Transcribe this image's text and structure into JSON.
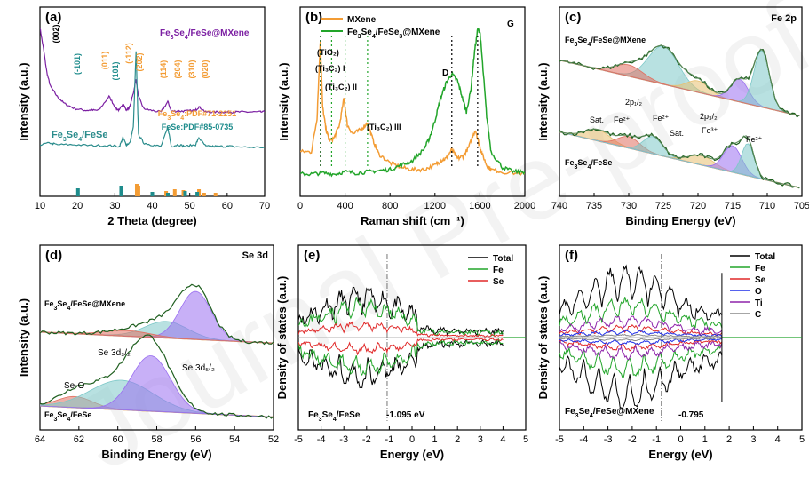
{
  "colors": {
    "panel_a_top": "#7b1fa2",
    "panel_a_bottom": "#2a8c8c",
    "orange": "#f39c34",
    "teal": "#1e8c8c",
    "green": "#22a52a",
    "red": "#e02828",
    "dark_green": "#1f5f1f",
    "peak_teal": "#7dc8c8",
    "peak_purple": "#9a6ff0",
    "peak_red": "#e07060",
    "peak_yellow": "#e8c070",
    "baseline": "#d9893a",
    "blue": "#1f2fe8",
    "purple": "#8e24aa",
    "gray": "#888888",
    "black": "#000000"
  },
  "chart_data": [
    {
      "panel": "(a)",
      "type": "line",
      "xlabel": "2 Theta (degree)",
      "ylabel": "Intensity (a.u.)",
      "xlim": [
        5,
        70
      ],
      "xticks": [
        "10",
        "20",
        "30",
        "40",
        "50",
        "60",
        "70"
      ],
      "series": [
        {
          "name": "Fe3Se4/FeSe@MXene",
          "label_html": "Fe<tspan baseline-shift='sub' font-size='7'>3</tspan>Se<tspan baseline-shift='sub' font-size='7'>4</tspan>/FeSe@MXene",
          "x": [
            5,
            6,
            7,
            8,
            10,
            12,
            15,
            18,
            20,
            22,
            25,
            27,
            28,
            29,
            30,
            31,
            32,
            32.8,
            33.5,
            35,
            37,
            40,
            42,
            43,
            45,
            47,
            50,
            51,
            53,
            55,
            58,
            60,
            62,
            65,
            68,
            70
          ],
          "y": [
            9.8,
            8.6,
            7.2,
            6.4,
            5.8,
            5.4,
            5.1,
            5.0,
            5.0,
            5.0,
            5.8,
            5.1,
            5.0,
            5.4,
            5.0,
            5.2,
            6.0,
            6.8,
            5.8,
            5.1,
            5.0,
            4.9,
            5.5,
            4.95,
            4.95,
            4.95,
            5.0,
            5.2,
            4.9,
            4.9,
            4.9,
            4.9,
            4.9,
            4.9,
            4.9,
            4.9
          ]
        },
        {
          "name": "Fe3Se4/FeSe",
          "label_html": "Fe<tspan baseline-shift='sub' font-size='7'>3</tspan>Se<tspan baseline-shift='sub' font-size='7'>4</tspan>/FeSe",
          "x": [
            5,
            8,
            10,
            15,
            20,
            25,
            28,
            29,
            30,
            31,
            32,
            32.8,
            33.5,
            35,
            37,
            40,
            42,
            43,
            45,
            47,
            50,
            51,
            53,
            55,
            58,
            60,
            65,
            70
          ],
          "y": [
            3.0,
            3.1,
            3.0,
            3.0,
            2.95,
            2.95,
            2.9,
            3.4,
            3.0,
            3.1,
            4.0,
            8.4,
            3.6,
            3.1,
            3.0,
            2.9,
            4.0,
            2.9,
            3.0,
            2.9,
            3.0,
            3.4,
            2.9,
            2.9,
            2.9,
            2.9,
            2.85,
            2.85
          ]
        }
      ],
      "annotations": [
        "(002)",
        "(-101)",
        "(011)",
        "(101)",
        "(-112)",
        "(202)",
        "(114)",
        "(204)",
        "(310)",
        "(020)"
      ],
      "references": [
        {
          "name": "Fe3Se4:PDF#71-2251",
          "label_html": "Fe<tspan baseline-shift='sub' font-size='7'>3</tspan>Se<tspan baseline-shift='sub' font-size='7'>4</tspan>:PDF#71-2251",
          "positions": [
            33.0,
            33.5,
            41.5,
            44.0,
            46.5,
            51.0,
            52.5,
            55.8
          ]
        },
        {
          "name": "FeSe:PDF#85-0735",
          "label_html": "FeSe:PDF#85-0735",
          "positions": [
            16.0,
            28.5,
            37.5,
            42.0,
            47.0,
            50.5
          ]
        }
      ]
    },
    {
      "panel": "(b)",
      "type": "line",
      "xlabel": "Raman shift (cm⁻¹)",
      "ylabel": "Intensity (a.u.)",
      "xlim": [
        0,
        2000
      ],
      "xticks": [
        "0",
        "400",
        "800",
        "1200",
        "1600",
        "2000"
      ],
      "series": [
        {
          "name": "MXene",
          "label_html": "MXene",
          "x": [
            0,
            100,
            150,
            180,
            200,
            230,
            260,
            300,
            350,
            390,
            420,
            470,
            540,
            600,
            650,
            700,
            800,
            900,
            1000,
            1100,
            1200,
            1250,
            1300,
            1350,
            1400,
            1450,
            1500,
            1560,
            1590,
            1620,
            1660,
            1700,
            1800,
            2000
          ],
          "y": [
            4.0,
            4.0,
            5.5,
            9.0,
            6.0,
            5.0,
            4.5,
            4.6,
            5.2,
            6.4,
            5.2,
            4.8,
            5.0,
            5.3,
            4.5,
            3.9,
            3.5,
            3.3,
            3.2,
            3.2,
            3.4,
            3.6,
            3.7,
            4.1,
            3.7,
            3.8,
            4.2,
            5.0,
            4.4,
            3.9,
            3.4,
            3.2,
            3.1,
            3.0
          ]
        },
        {
          "name": "Fe3Se4/FeSe3@MXene",
          "label_html": "Fe<tspan baseline-shift='sub' font-size='7'>3</tspan>Se<tspan baseline-shift='sub' font-size='7'>4</tspan>/FeSe<tspan baseline-shift='sub' font-size='7'>3</tspan>@MXene",
          "x": [
            0,
            100,
            200,
            300,
            400,
            500,
            600,
            700,
            800,
            900,
            1000,
            1100,
            1150,
            1200,
            1250,
            1300,
            1350,
            1400,
            1440,
            1480,
            1520,
            1550,
            1580,
            1600,
            1620,
            1660,
            1700,
            1800,
            1900,
            2000
          ],
          "y": [
            3.0,
            3.0,
            3.05,
            3.0,
            3.1,
            3.05,
            3.1,
            3.15,
            3.2,
            3.4,
            3.6,
            4.1,
            4.6,
            5.4,
            6.4,
            7.1,
            7.5,
            7.2,
            6.5,
            5.8,
            6.8,
            8.4,
            9.5,
            9.4,
            8.2,
            5.6,
            4.0,
            3.3,
            3.1,
            3.1
          ]
        }
      ],
      "annotations": [
        "(TiO₂)",
        "(Ti₃C₂) I",
        "(Ti₃C₂) II",
        "(Ti₃C₂) III",
        "D",
        "G"
      ]
    },
    {
      "panel": "(c)",
      "type": "line",
      "title": "Fe 2p",
      "xlabel": "Binding Energy (eV)",
      "ylabel": "Intensity (a.u.)",
      "xlim": [
        740,
        705
      ],
      "xticks": [
        "740",
        "735",
        "730",
        "725",
        "720",
        "715",
        "710",
        "705"
      ],
      "series": [
        {
          "name": "Fe3Se4/FeSe@MXene",
          "label_html": "Fe<tspan baseline-shift='sub' font-size='7'>3</tspan>Se<tspan baseline-shift='sub' font-size='7'>4</tspan>/FeSe@MXene"
        },
        {
          "name": "Fe3Se4/FeSe",
          "label_html": "Fe<tspan baseline-shift='sub' font-size='7'>3</tspan>Se<tspan baseline-shift='sub' font-size='7'>4</tspan>/FeSe"
        }
      ],
      "annotations": [
        "2p₁/₂",
        "2p₃/₂",
        "Sat.",
        "Fe²⁺",
        "Fe²⁺",
        "Sat.",
        "Fe³⁺",
        "Fe²⁺"
      ]
    },
    {
      "panel": "(d)",
      "type": "line",
      "title": "Se 3d",
      "xlabel": "Binding Energy (eV)",
      "ylabel": "Intensity (a.u.)",
      "xlim": [
        64,
        52
      ],
      "xticks": [
        "64",
        "62",
        "60",
        "58",
        "56",
        "54",
        "52"
      ],
      "series": [
        {
          "name": "Fe3Se4/FeSe@MXene",
          "label_html": "Fe<tspan baseline-shift='sub' font-size='7'>3</tspan>Se<tspan baseline-shift='sub' font-size='7'>4</tspan>/FeSe@MXene"
        },
        {
          "name": "Fe3Se4/FeSe",
          "label_html": "Fe<tspan baseline-shift='sub' font-size='7'>3</tspan>Se<tspan baseline-shift='sub' font-size='7'>4</tspan>/FeSe"
        }
      ],
      "annotations": [
        "Se 3d₃/₂",
        "Se 3d₅/₂",
        "Se-O"
      ]
    },
    {
      "panel": "(e)",
      "type": "line",
      "xlabel": "Energy (eV)",
      "ylabel": "Density of states (a.u.)",
      "xlim": [
        -5,
        5
      ],
      "xticks": [
        "-5",
        "-4",
        "-3",
        "-2",
        "-1",
        "0",
        "1",
        "2",
        "3",
        "4",
        "5"
      ],
      "fermi": -1.095,
      "legend": [
        "Total",
        "Fe",
        "Se"
      ],
      "annotations": [
        "Fe₃Se₄/FeSe",
        "-1.095 eV"
      ]
    },
    {
      "panel": "(f)",
      "type": "line",
      "xlabel": "Energy (eV)",
      "ylabel": "Density of states (a.u.)",
      "xlim": [
        -5,
        5
      ],
      "xticks": [
        "-5",
        "-4",
        "-3",
        "-2",
        "-1",
        "0",
        "1",
        "2",
        "3",
        "4",
        "5"
      ],
      "fermi": -0.795,
      "legend": [
        "Total",
        "Fe",
        "Se",
        "O",
        "Ti",
        "C"
      ],
      "annotations": [
        "Fe₃Se₄/FeSe@MXene",
        "-0.795"
      ]
    }
  ]
}
